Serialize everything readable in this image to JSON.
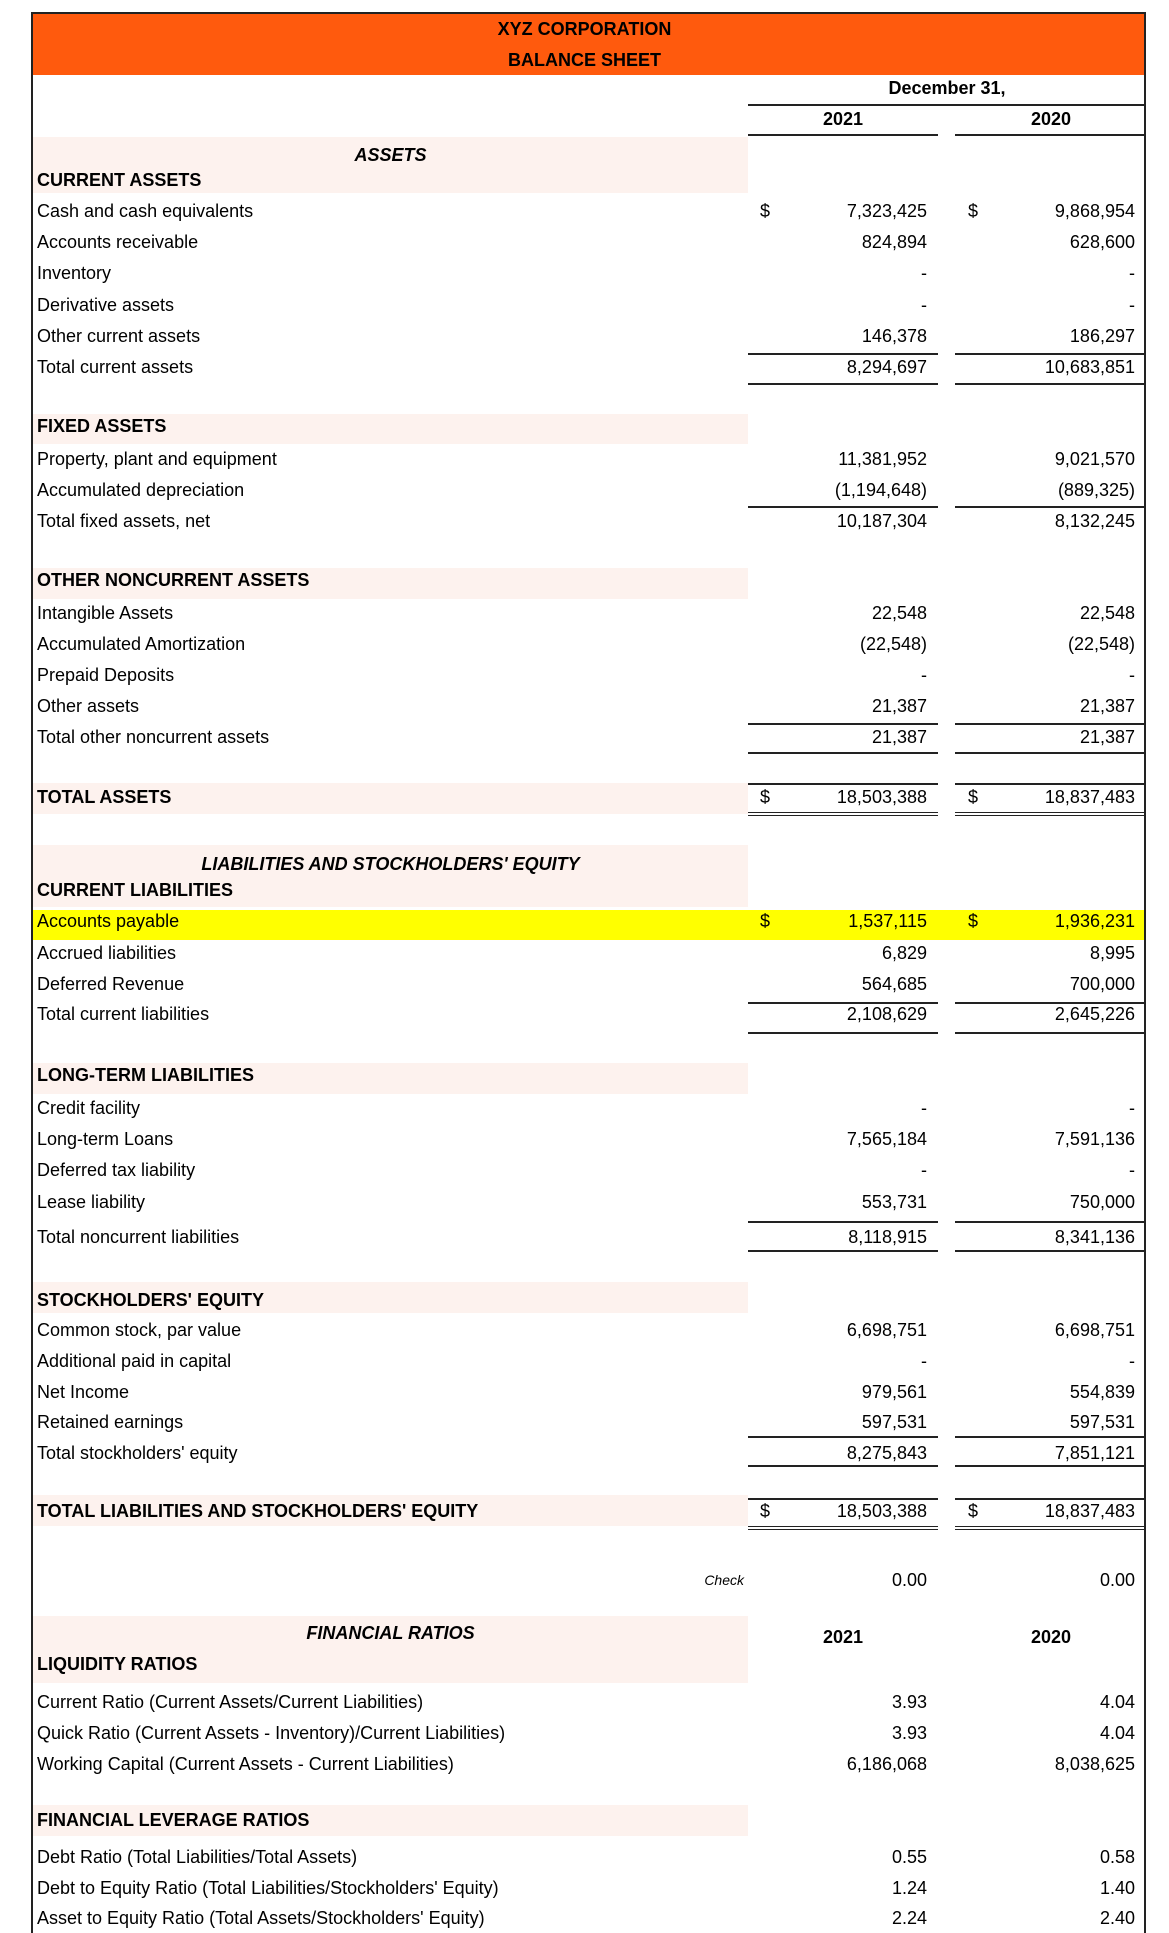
{
  "header": {
    "company": "XYZ CORPORATION",
    "title": "BALANCE SHEET",
    "period_label": "December 31,",
    "year1": "2021",
    "year2": "2020",
    "color": "#ff5a0d"
  },
  "highlight_color": "#ffff00",
  "rows": [
    {
      "label": "ASSETS",
      "kind": "center"
    },
    {
      "label": "CURRENT ASSETS",
      "kind": "section"
    },
    {
      "label": "Cash and cash equivalents",
      "kind": "line",
      "cur1": "$",
      "v2021": "7,323,425",
      "cur2": "$",
      "v2020": "9,868,954"
    },
    {
      "label": "Accounts receivable",
      "kind": "line",
      "v2021": "824,894",
      "v2020": "628,600"
    },
    {
      "label": "Inventory",
      "kind": "line",
      "v2021": "-",
      "v2020": "-"
    },
    {
      "label": "Derivative assets",
      "kind": "line",
      "v2021": "-",
      "v2020": "-"
    },
    {
      "label": "Other current assets",
      "kind": "line",
      "v2021": "146,378",
      "v2020": "186,297"
    },
    {
      "label": "Total current assets",
      "kind": "total",
      "v2021": "8,294,697",
      "v2020": "10,683,851"
    },
    {
      "label": "FIXED ASSETS",
      "kind": "section"
    },
    {
      "label": "Property, plant and equipment",
      "kind": "line",
      "v2021": "11,381,952",
      "v2020": "9,021,570"
    },
    {
      "label": "Accumulated depreciation",
      "kind": "line",
      "v2021": "(1,194,648)",
      "v2020": "(889,325)"
    },
    {
      "label": "Total fixed assets, net",
      "kind": "total",
      "v2021": "10,187,304",
      "v2020": "8,132,245"
    },
    {
      "label": "OTHER NONCURRENT ASSETS",
      "kind": "section"
    },
    {
      "label": "Intangible Assets",
      "kind": "line",
      "v2021": "22,548",
      "v2020": "22,548"
    },
    {
      "label": "Accumulated Amortization",
      "kind": "line",
      "v2021": "(22,548)",
      "v2020": "(22,548)"
    },
    {
      "label": "Prepaid Deposits",
      "kind": "line",
      "v2021": "-",
      "v2020": "-"
    },
    {
      "label": "Other assets",
      "kind": "line",
      "v2021": "21,387",
      "v2020": "21,387"
    },
    {
      "label": "Total other noncurrent assets",
      "kind": "total",
      "v2021": "21,387",
      "v2020": "21,387"
    },
    {
      "label": "TOTAL ASSETS",
      "kind": "grand-total",
      "cur1": "$",
      "v2021": "18,503,388",
      "cur2": "$",
      "v2020": "18,837,483"
    },
    {
      "label": "LIABILITIES AND STOCKHOLDERS' EQUITY",
      "kind": "center"
    },
    {
      "label": "CURRENT LIABILITIES",
      "kind": "section"
    },
    {
      "label": "Accounts payable",
      "kind": "highlight",
      "cur1": "$",
      "v2021": "1,537,115",
      "cur2": "$",
      "v2020": "1,936,231"
    },
    {
      "label": "Accrued liabilities",
      "kind": "line",
      "v2021": "6,829",
      "v2020": "8,995"
    },
    {
      "label": "Deferred Revenue",
      "kind": "line",
      "v2021": "564,685",
      "v2020": "700,000"
    },
    {
      "label": "Total current liabilities",
      "kind": "total",
      "v2021": "2,108,629",
      "v2020": "2,645,226"
    },
    {
      "label": "LONG-TERM LIABILITIES",
      "kind": "section"
    },
    {
      "label": "Credit facility",
      "kind": "line",
      "v2021": "-",
      "v2020": "-"
    },
    {
      "label": "Long-term Loans",
      "kind": "line",
      "v2021": "7,565,184",
      "v2020": "7,591,136"
    },
    {
      "label": "Deferred tax liability",
      "kind": "line",
      "v2021": "-",
      "v2020": "-"
    },
    {
      "label": "Lease liability",
      "kind": "line",
      "v2021": "553,731",
      "v2020": "750,000"
    },
    {
      "label": "Total noncurrent liabilities",
      "kind": "total",
      "v2021": "8,118,915",
      "v2020": "8,341,136"
    },
    {
      "label": "STOCKHOLDERS' EQUITY",
      "kind": "section"
    },
    {
      "label": "Common stock, par value",
      "kind": "line",
      "v2021": "6,698,751",
      "v2020": "6,698,751"
    },
    {
      "label": "Additional paid in capital",
      "kind": "line",
      "v2021": "-",
      "v2020": "-"
    },
    {
      "label": "Net Income",
      "kind": "line",
      "v2021": "979,561",
      "v2020": "554,839"
    },
    {
      "label": "Retained earnings",
      "kind": "line",
      "v2021": "597,531",
      "v2020": "597,531"
    },
    {
      "label": "Total stockholders' equity",
      "kind": "total",
      "v2021": "8,275,843",
      "v2020": "7,851,121"
    },
    {
      "label": "TOTAL LIABILITIES AND STOCKHOLDERS' EQUITY",
      "kind": "grand-total",
      "cur1": "$",
      "v2021": "18,503,388",
      "cur2": "$",
      "v2020": "18,837,483"
    },
    {
      "label": "Check",
      "kind": "check",
      "v2021": "0.00",
      "v2020": "0.00"
    },
    {
      "label": "FINANCIAL RATIOS",
      "kind": "center"
    },
    {
      "label": "LIQUIDITY RATIOS",
      "kind": "section"
    },
    {
      "label": "Current Ratio (Current Assets/Current Liabilities)",
      "kind": "line",
      "v2021": "3.93",
      "v2020": "4.04"
    },
    {
      "label": "Quick Ratio (Current Assets - Inventory)/Current Liabilities)",
      "kind": "line",
      "v2021": "3.93",
      "v2020": "4.04"
    },
    {
      "label": "Working Capital (Current Assets - Current Liabilities)",
      "kind": "line",
      "v2021": "6,186,068",
      "v2020": "8,038,625"
    },
    {
      "label": "FINANCIAL LEVERAGE RATIOS",
      "kind": "section"
    },
    {
      "label": "Debt Ratio (Total Liabilities/Total Assets)",
      "kind": "line",
      "v2021": "0.55",
      "v2020": "0.58"
    },
    {
      "label": "Debt to Equity Ratio (Total Liabilities/Stockholders' Equity)",
      "kind": "line",
      "v2021": "1.24",
      "v2020": "1.40"
    },
    {
      "label": "Asset to Equity Ratio (Total Assets/Stockholders' Equity)",
      "kind": "line",
      "v2021": "2.24",
      "v2020": "2.40"
    }
  ],
  "ratios_header": {
    "year1": "2021",
    "year2": "2020"
  }
}
